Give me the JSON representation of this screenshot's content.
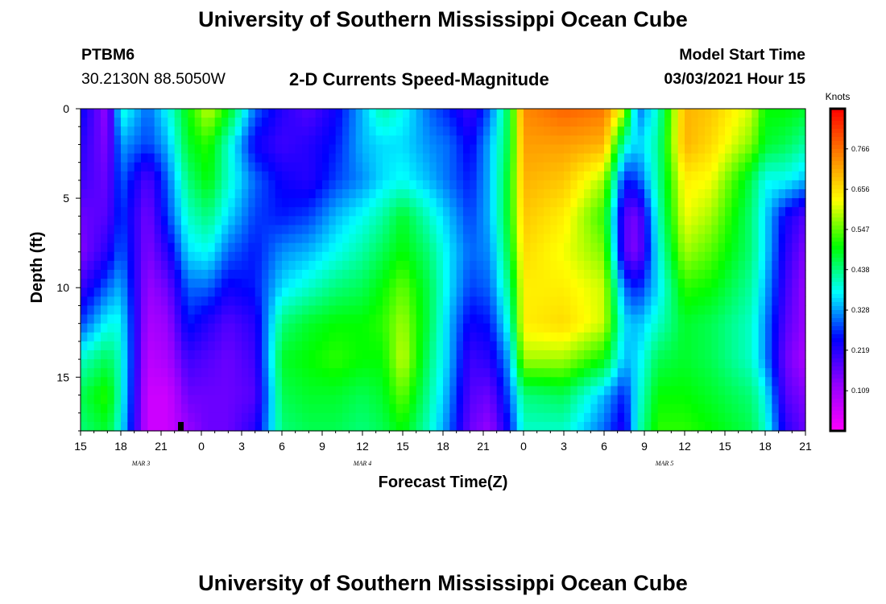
{
  "header": {
    "title": "University of Southern Mississippi Ocean Cube",
    "station_id": "PTBM6",
    "station_coords": "30.2130N 88.5050W",
    "plot_title": "2-D Currents Speed-Magnitude",
    "model_start_label": "Model Start Time",
    "model_start_value": "03/03/2021 Hour 15"
  },
  "footer": {
    "title": "University of Southern Mississippi Ocean Cube"
  },
  "chart_data": {
    "type": "heatmap",
    "title": "2-D Currents Speed-Magnitude",
    "xlabel": "Forecast Time(Z)",
    "ylabel": "Depth (ft)",
    "x_ticks": [
      "15",
      "18",
      "21",
      "0",
      "3",
      "6",
      "9",
      "12",
      "15",
      "18",
      "21",
      "0",
      "3",
      "6",
      "9",
      "12",
      "15",
      "18",
      "21"
    ],
    "x_date_labels": [
      {
        "label": "MAR 3",
        "tick_index": 1.5
      },
      {
        "label": "MAR 4",
        "tick_index": 7
      },
      {
        "label": "MAR 5",
        "tick_index": 14.5
      }
    ],
    "x_range_hours": [
      0,
      54
    ],
    "y_ticks": [
      "0",
      "5",
      "10",
      "15"
    ],
    "y_range_ft": [
      0,
      18
    ],
    "y_inverted": true,
    "colorbar": {
      "unit": "Knots",
      "tick_labels": [
        "0.109",
        "0.219",
        "0.328",
        "0.438",
        "0.547",
        "0.656",
        "0.766"
      ],
      "range": [
        0,
        0.875
      ],
      "colors": [
        "#ff00ff",
        "#9400ff",
        "#0000ff",
        "#00ffff",
        "#00ff00",
        "#ffff00",
        "#ff8000",
        "#ff0000"
      ]
    },
    "keypoints": {
      "hours": [
        0,
        2,
        3,
        5,
        6.5,
        8,
        9.5,
        11,
        13,
        15,
        17,
        19,
        21,
        22.5,
        24,
        26,
        27.5,
        29,
        30.5,
        32,
        33,
        36,
        39,
        40.5,
        41.5,
        43,
        45,
        47,
        50,
        51,
        52.5,
        54
      ],
      "depths_ft": [
        0,
        2,
        4,
        6,
        8,
        10,
        12,
        14,
        16,
        18
      ],
      "speed_knots": [
        [
          0.25,
          0.12,
          0.4,
          0.3,
          0.38,
          0.5,
          0.6,
          0.5,
          0.3,
          0.22,
          0.18,
          0.24,
          0.34,
          0.42,
          0.38,
          0.3,
          0.26,
          0.2,
          0.3,
          0.48,
          0.74,
          0.78,
          0.76,
          0.6,
          0.3,
          0.4,
          0.7,
          0.68,
          0.6,
          0.5,
          0.5,
          0.48
        ],
        [
          0.22,
          0.14,
          0.33,
          0.28,
          0.34,
          0.48,
          0.52,
          0.4,
          0.24,
          0.2,
          0.22,
          0.26,
          0.34,
          0.36,
          0.36,
          0.32,
          0.3,
          0.24,
          0.34,
          0.48,
          0.72,
          0.72,
          0.7,
          0.4,
          0.35,
          0.42,
          0.7,
          0.66,
          0.56,
          0.48,
          0.46,
          0.42
        ],
        [
          0.2,
          0.16,
          0.3,
          0.18,
          0.3,
          0.44,
          0.5,
          0.4,
          0.3,
          0.24,
          0.22,
          0.28,
          0.32,
          0.36,
          0.38,
          0.34,
          0.3,
          0.26,
          0.34,
          0.5,
          0.7,
          0.68,
          0.58,
          0.26,
          0.28,
          0.42,
          0.64,
          0.62,
          0.46,
          0.38,
          0.38,
          0.34
        ],
        [
          0.16,
          0.18,
          0.28,
          0.15,
          0.28,
          0.4,
          0.44,
          0.36,
          0.28,
          0.26,
          0.28,
          0.34,
          0.38,
          0.42,
          0.48,
          0.4,
          0.34,
          0.28,
          0.34,
          0.5,
          0.68,
          0.64,
          0.52,
          0.18,
          0.15,
          0.4,
          0.62,
          0.58,
          0.44,
          0.36,
          0.24,
          0.18
        ],
        [
          0.14,
          0.22,
          0.3,
          0.14,
          0.22,
          0.36,
          0.38,
          0.3,
          0.26,
          0.32,
          0.34,
          0.38,
          0.42,
          0.46,
          0.5,
          0.44,
          0.36,
          0.3,
          0.32,
          0.48,
          0.66,
          0.62,
          0.56,
          0.18,
          0.14,
          0.38,
          0.58,
          0.54,
          0.44,
          0.36,
          0.22,
          0.14
        ],
        [
          0.2,
          0.3,
          0.34,
          0.12,
          0.16,
          0.3,
          0.3,
          0.24,
          0.26,
          0.36,
          0.4,
          0.44,
          0.46,
          0.5,
          0.55,
          0.46,
          0.36,
          0.28,
          0.3,
          0.44,
          0.64,
          0.64,
          0.6,
          0.3,
          0.26,
          0.36,
          0.52,
          0.5,
          0.42,
          0.34,
          0.2,
          0.12
        ],
        [
          0.28,
          0.38,
          0.38,
          0.1,
          0.12,
          0.26,
          0.22,
          0.18,
          0.22,
          0.44,
          0.48,
          0.5,
          0.5,
          0.52,
          0.58,
          0.46,
          0.34,
          0.24,
          0.26,
          0.4,
          0.64,
          0.66,
          0.6,
          0.36,
          0.34,
          0.4,
          0.48,
          0.46,
          0.4,
          0.32,
          0.18,
          0.12
        ],
        [
          0.4,
          0.46,
          0.4,
          0.08,
          0.1,
          0.2,
          0.18,
          0.16,
          0.2,
          0.48,
          0.5,
          0.52,
          0.5,
          0.5,
          0.6,
          0.44,
          0.34,
          0.2,
          0.22,
          0.34,
          0.58,
          0.58,
          0.5,
          0.34,
          0.36,
          0.46,
          0.48,
          0.46,
          0.4,
          0.32,
          0.16,
          0.1
        ],
        [
          0.46,
          0.52,
          0.4,
          0.06,
          0.06,
          0.16,
          0.16,
          0.16,
          0.18,
          0.46,
          0.48,
          0.48,
          0.46,
          0.48,
          0.55,
          0.42,
          0.32,
          0.18,
          0.16,
          0.3,
          0.44,
          0.46,
          0.34,
          0.26,
          0.38,
          0.5,
          0.5,
          0.48,
          0.44,
          0.38,
          0.18,
          0.14
        ],
        [
          0.44,
          0.48,
          0.38,
          0.06,
          0.06,
          0.12,
          0.16,
          0.16,
          0.22,
          0.44,
          0.46,
          0.46,
          0.44,
          0.46,
          0.5,
          0.4,
          0.3,
          0.16,
          0.12,
          0.26,
          0.4,
          0.4,
          0.3,
          0.22,
          0.4,
          0.52,
          0.52,
          0.5,
          0.46,
          0.4,
          0.22,
          0.16
        ]
      ]
    }
  }
}
